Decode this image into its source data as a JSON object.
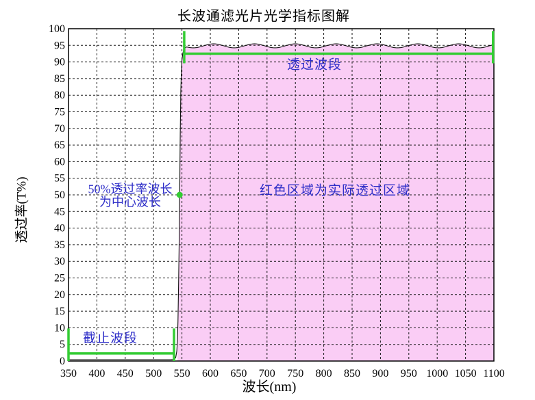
{
  "colors": {
    "background": "#ffffff",
    "fill_pink": "#FACDF5",
    "bracket_green": "#33CC33",
    "annotation_blue": "#2E2EC8",
    "curve_black": "#111111",
    "grid_black": "#1a1a1a",
    "frame_black": "#000000",
    "tick_text": "#000000"
  },
  "chart_data": {
    "type": "area",
    "title": "长波通滤光片光学指标图解",
    "xlabel": "波长(nm)",
    "ylabel": "透过率(T%)",
    "xlim": [
      350,
      1100
    ],
    "ylim": [
      0,
      100
    ],
    "grid": true,
    "x_ticks": [
      350,
      400,
      450,
      500,
      550,
      600,
      650,
      700,
      750,
      800,
      850,
      900,
      950,
      1000,
      1050,
      1100
    ],
    "y_ticks": [
      0,
      5,
      10,
      15,
      20,
      25,
      30,
      35,
      40,
      45,
      50,
      55,
      60,
      65,
      70,
      75,
      80,
      85,
      90,
      95,
      100
    ],
    "series": [
      {
        "name": "transmittance-curve",
        "low_points": [
          [
            350,
            0.4
          ],
          [
            450,
            0.4
          ],
          [
            530,
            0.4
          ],
          [
            534,
            0.45
          ]
        ],
        "rise_points": [
          [
            536,
            0.5
          ],
          [
            539,
            1
          ],
          [
            541,
            3
          ],
          [
            542,
            6
          ],
          [
            543,
            12
          ],
          [
            544,
            22
          ],
          [
            545,
            35
          ],
          [
            546,
            50
          ],
          [
            547,
            68
          ],
          [
            548,
            81
          ],
          [
            549,
            87.5
          ],
          [
            550,
            90.5
          ],
          [
            551.5,
            92.5
          ],
          [
            553,
            93.6
          ],
          [
            555,
            94.2
          ],
          [
            558,
            94.5
          ]
        ],
        "ripple": {
          "from": 561,
          "to": 1100,
          "base": 94.85,
          "amplitude": 0.6,
          "period": 72,
          "peak_at": 606
        }
      }
    ],
    "fill_region": {
      "label": "红色区域为实际透过区域",
      "from_nm": 542,
      "to_nm": 1100
    },
    "markers": [
      {
        "name": "half-transmittance-point",
        "x_nm": 546,
        "t_percent": 50,
        "label_line1": "50%透过率波长",
        "label_line2": "为中心波长"
      }
    ],
    "brackets": [
      {
        "name": "cutoff-band",
        "label": "截止波段",
        "x1_nm": 350,
        "x2_nm": 536,
        "connector_t": 2.3,
        "tick_t_low": 0,
        "tick_t_high": 9.8
      },
      {
        "name": "pass-band",
        "label": "透过波段",
        "x1_nm": 554,
        "x2_nm": 1098.5,
        "connector_t": 92.5,
        "tick_t_low": 89.6,
        "tick_t_high": 99.3
      }
    ]
  }
}
